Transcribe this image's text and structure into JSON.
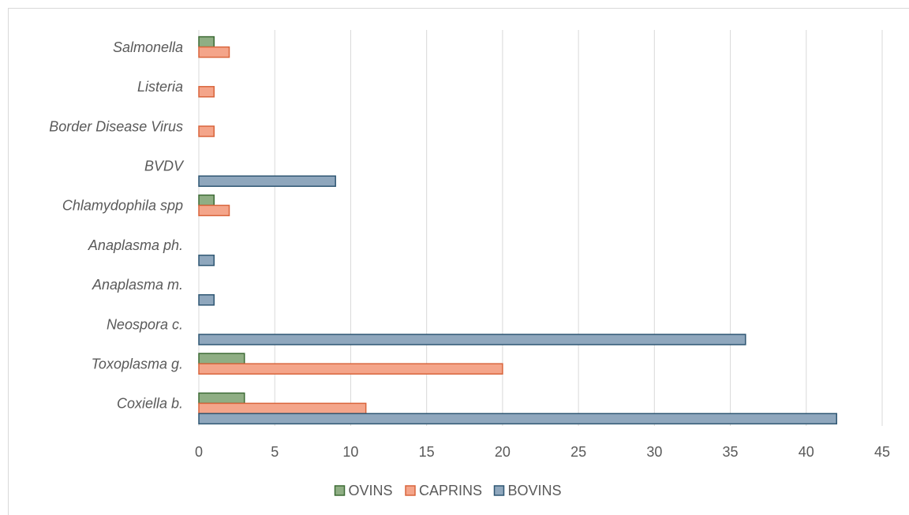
{
  "chart_data": {
    "type": "hbar",
    "categories": [
      "Coxiella b.",
      "Toxoplasma g.",
      "Neospora c.",
      "Anaplasma m.",
      "Anaplasma ph.",
      "Chlamydophila spp",
      "BVDV",
      "Border Disease Virus",
      "Listeria",
      "Salmonella"
    ],
    "series": [
      {
        "name": "OVINS",
        "color": "#8fae84",
        "values": [
          3,
          3,
          0,
          0,
          0,
          1,
          0,
          0,
          0,
          1
        ]
      },
      {
        "name": "CAPRINS",
        "color": "#f4a58a",
        "values": [
          11,
          20,
          0,
          0,
          0,
          2,
          0,
          1,
          1,
          2
        ]
      },
      {
        "name": "BOVINS",
        "color": "#8fa7bd",
        "values": [
          42,
          0,
          36,
          1,
          1,
          0,
          9,
          0,
          0,
          0
        ]
      }
    ],
    "xlim": [
      0,
      45
    ],
    "xticks": [
      0,
      5,
      10,
      15,
      20,
      25,
      30,
      35,
      40,
      45
    ],
    "grid": true,
    "legend": "bottom"
  }
}
